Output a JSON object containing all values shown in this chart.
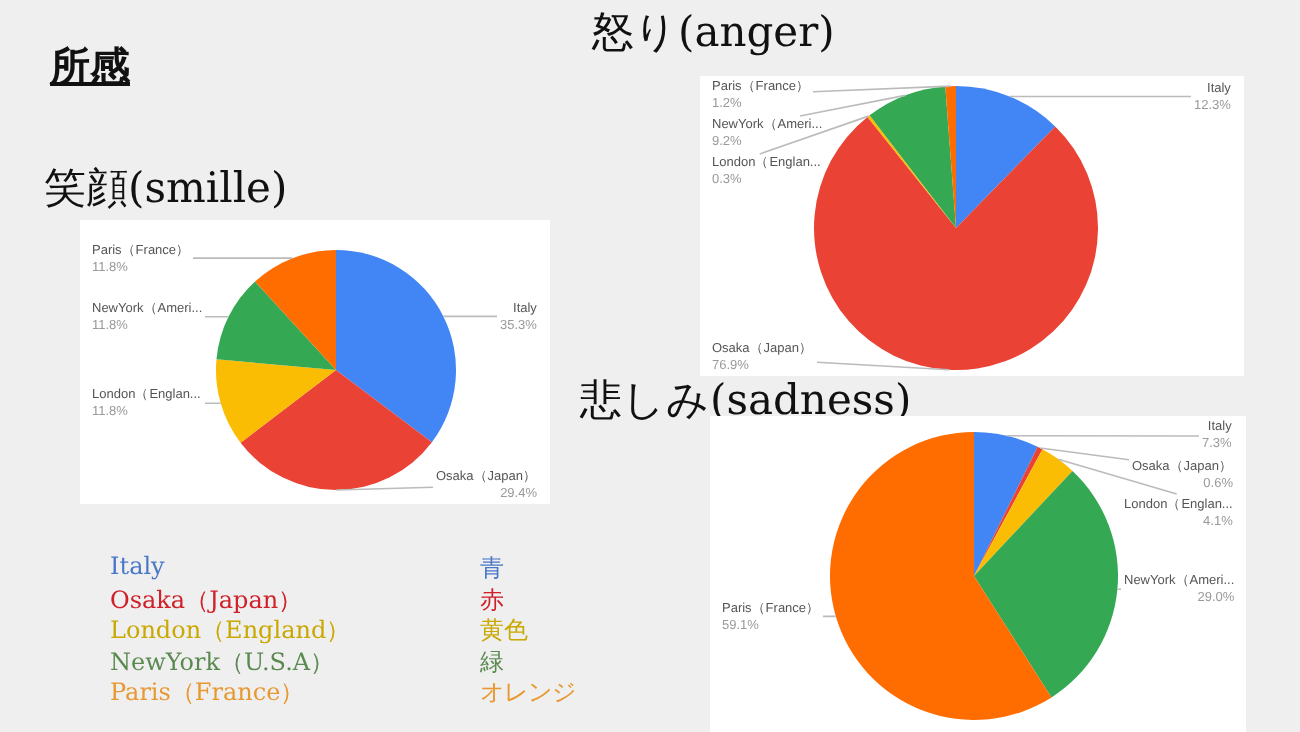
{
  "chart_data": [
    {
      "type": "pie",
      "title": "笑顔(smille)",
      "categories": [
        "Italy",
        "Osaka（Japan）",
        "London（Englan...",
        "NewYork（Ameri...",
        "Paris（France）"
      ],
      "values": [
        35.3,
        29.4,
        11.8,
        11.8,
        11.8
      ],
      "value_labels": [
        "35.3%",
        "29.4%",
        "11.8%",
        "11.8%",
        "11.8%"
      ],
      "colors": [
        "#4285f4",
        "#ea4335",
        "#fbbc04",
        "#34a853",
        "#ff6d01"
      ]
    },
    {
      "type": "pie",
      "title": "怒り(anger)",
      "categories": [
        "Italy",
        "Osaka（Japan）",
        "London（Englan...",
        "NewYork（Ameri...",
        "Paris（France）"
      ],
      "values": [
        12.3,
        76.9,
        0.3,
        9.2,
        1.2
      ],
      "value_labels": [
        "12.3%",
        "76.9%",
        "0.3%",
        "9.2%",
        "1.2%"
      ],
      "colors": [
        "#4285f4",
        "#ea4335",
        "#fbbc04",
        "#34a853",
        "#ff6d01"
      ]
    },
    {
      "type": "pie",
      "title": "悲しみ(sadness)",
      "categories": [
        "Italy",
        "Osaka（Japan）",
        "London（Englan...",
        "NewYork（Ameri...",
        "Paris（France）"
      ],
      "values": [
        7.3,
        0.6,
        4.1,
        29.0,
        59.1
      ],
      "value_labels": [
        "7.3%",
        "0.6%",
        "4.1%",
        "29.0%",
        "59.1%"
      ],
      "colors": [
        "#4285f4",
        "#ea4335",
        "#fbbc04",
        "#34a853",
        "#ff6d01"
      ]
    },
    {
      "type": "other",
      "title": "所感",
      "annotations": [
        "Italy",
        "青",
        "Osaka（Japan）",
        "赤",
        "London（England）",
        "黄色",
        "NewYork（U.S.A）",
        "緑",
        "Paris（France）",
        "オレンジ"
      ],
      "colors": [
        "#4a78c8",
        "#d0202a",
        "#c9a800",
        "#5a8a50",
        "#e89830"
      ]
    }
  ]
}
